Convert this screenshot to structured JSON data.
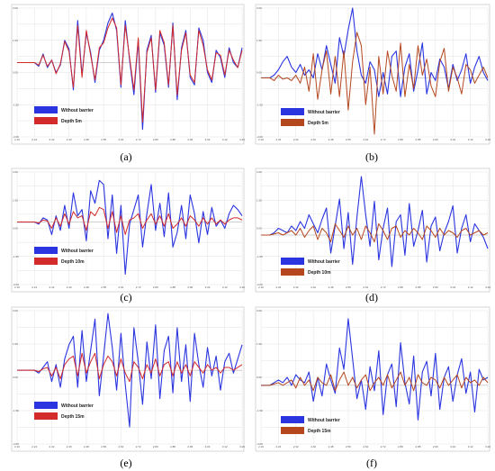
{
  "colors": {
    "without_barrier": "#2a35e0",
    "barrier_a": "#d32a2a",
    "barrier_b": "#b5471f",
    "grid": "#e2e2e2",
    "frame": "#bdbdbd",
    "zero_line": "#888888"
  },
  "chart_data": [
    {
      "type": "line",
      "panel_label": "(a)",
      "series": [
        {
          "name": "Without barrier",
          "color_key": "without_barrier",
          "values": [
            0,
            0,
            0,
            0,
            0,
            -0.15,
            0.35,
            -0.2,
            0.1,
            -0.4,
            -0.1,
            0.9,
            0.55,
            -1.1,
            1.7,
            -0.5,
            1.2,
            0.4,
            -0.8,
            0.5,
            0.9,
            1.6,
            2.0,
            1.3,
            -1.0,
            1.7,
            0.1,
            -1.3,
            0.9,
            -2.7,
            0.5,
            1.1,
            -1.2,
            1.2,
            0.7,
            -1.0,
            1.6,
            -1.5,
            0.6,
            1.3,
            -0.6,
            -0.9,
            1.4,
            0.9,
            -0.4,
            -0.8,
            0.5,
            0.2,
            -0.6,
            0.6,
            0.0,
            -0.2,
            0.6
          ]
        },
        {
          "name": "Depth 5m",
          "color_key": "barrier_a",
          "values": [
            0,
            0,
            0,
            0,
            0,
            -0.1,
            0.3,
            -0.15,
            0.1,
            -0.45,
            -0.05,
            0.85,
            0.45,
            -1.0,
            1.5,
            -0.6,
            1.3,
            0.3,
            -0.7,
            0.6,
            0.8,
            1.4,
            1.8,
            1.4,
            -0.9,
            1.5,
            0.2,
            -1.1,
            1.0,
            -2.4,
            0.4,
            1.0,
            -1.1,
            1.3,
            0.8,
            -0.9,
            1.5,
            -1.3,
            0.5,
            1.2,
            -0.5,
            -0.8,
            1.3,
            0.7,
            -0.3,
            -0.7,
            0.4,
            0.3,
            -0.5,
            0.5,
            0.1,
            -0.2,
            0.5
          ]
        }
      ],
      "x_ticks": [
        "2.16",
        "2.24",
        "2.32",
        "2.40",
        "2.48",
        "2.56",
        "2.64",
        "2.72",
        "2.80",
        "2.88",
        "2.96",
        "3.04",
        "3.12",
        "3.20"
      ],
      "y_ticks": [
        "3.00",
        "1.50",
        "0.00",
        "-1.50",
        "-3.00"
      ],
      "ylim": [
        -3,
        2.2
      ],
      "legend_labels": [
        "Without barrier",
        "Depth 5m"
      ]
    },
    {
      "type": "line",
      "panel_label": "(b)",
      "series": [
        {
          "name": "Without barrier",
          "color_key": "without_barrier",
          "values": [
            0,
            0,
            0,
            0.1,
            0.3,
            0.6,
            0.8,
            0.4,
            0.2,
            0.5,
            0.1,
            0.3,
            0.0,
            0.9,
            0.3,
            1.2,
            0.5,
            -0.2,
            1.5,
            0.8,
            1.8,
            2.6,
            1.0,
            0.1,
            -0.2,
            0.6,
            0.3,
            -0.7,
            0.2,
            -0.6,
            0.8,
            1.0,
            -0.7,
            0.4,
            0.9,
            -0.5,
            0.3,
            1.3,
            -0.6,
            0.2,
            -0.1,
            0.7,
            0.4,
            -0.4,
            0.5,
            -0.1,
            0.3,
            0.9,
            -0.2,
            0.4,
            0.8,
            0.2,
            -0.1
          ]
        },
        {
          "name": "Depth 5m",
          "color_key": "barrier_b",
          "values": [
            0,
            0,
            0,
            -0.1,
            0.1,
            -0.05,
            0.0,
            -0.1,
            0.1,
            -0.2,
            0.4,
            -0.5,
            0.9,
            -0.8,
            0.3,
            1.0,
            -0.6,
            0.8,
            -0.7,
            1.0,
            -1.2,
            0.6,
            1.7,
            1.2,
            -1.0,
            0.4,
            -2.1,
            0.8,
            -0.6,
            1.0,
            0.1,
            -0.5,
            1.3,
            -0.7,
            0.5,
            -0.4,
            1.2,
            0.1,
            0.7,
            -0.3,
            -0.7,
            0.6,
            1.1,
            -0.5,
            0.4,
            0.0,
            -0.6,
            0.5,
            0.3,
            -0.2,
            0.1,
            0.4,
            0.0
          ]
        }
      ],
      "x_ticks": [
        "2.16",
        "2.24",
        "2.32",
        "2.40",
        "2.48",
        "2.56",
        "2.64",
        "2.72",
        "2.80",
        "2.88",
        "2.96",
        "3.04",
        "3.12",
        "3.20"
      ],
      "y_ticks": [
        "3.00",
        "1.50",
        "0.00",
        "-1.50",
        "-3.00"
      ],
      "ylim": [
        -2.2,
        2.6
      ],
      "legend_labels": [
        "Without barrier",
        "Depth 5m"
      ]
    },
    {
      "type": "line",
      "panel_label": "(c)",
      "series": [
        {
          "name": "Without barrier",
          "color_key": "without_barrier",
          "values": [
            0,
            0,
            0,
            0,
            0,
            -0.1,
            0.2,
            0.1,
            -0.6,
            0.3,
            -0.4,
            0.8,
            -0.3,
            1.4,
            0.3,
            0.6,
            -0.9,
            1.5,
            0.9,
            2.0,
            1.8,
            -0.8,
            1.3,
            -1.5,
            0.8,
            -2.5,
            -0.1,
            0.6,
            1.3,
            -1.2,
            0.4,
            1.8,
            -0.4,
            0.9,
            -0.7,
            1.4,
            -1.2,
            -0.5,
            0.8,
            -0.8,
            1.3,
            0.4,
            -1.0,
            0.5,
            -0.6,
            0.7,
            -0.2,
            0.1,
            -0.3,
            0.4,
            0.8,
            0.6,
            0.3
          ]
        },
        {
          "name": "Depth 10m",
          "color_key": "barrier_a",
          "values": [
            0,
            0,
            0,
            0,
            0,
            -0.05,
            0.1,
            0.05,
            -0.3,
            0.2,
            -0.2,
            0.4,
            -0.1,
            0.5,
            0.2,
            0.3,
            -0.4,
            0.5,
            0.3,
            0.7,
            0.6,
            -0.3,
            0.5,
            -0.5,
            0.3,
            -0.6,
            0.1,
            0.2,
            0.4,
            -0.3,
            0.1,
            0.4,
            -0.1,
            0.3,
            -0.2,
            0.4,
            -0.3,
            -0.1,
            0.2,
            -0.2,
            0.3,
            0.1,
            -0.2,
            0.2,
            -0.1,
            0.2,
            -0.1,
            0.1,
            -0.1,
            0.1,
            0.2,
            0.2,
            0.1
          ]
        }
      ],
      "x_ticks": [
        "2.16",
        "2.24",
        "2.32",
        "2.40",
        "2.48",
        "2.56",
        "2.64",
        "2.72",
        "2.80",
        "2.88",
        "2.96",
        "3.04",
        "3.12",
        "3.20"
      ],
      "y_ticks": [
        "3.00",
        "1.50",
        "0.00",
        "-1.50",
        "-3.00"
      ],
      "ylim": [
        -3,
        2.4
      ],
      "legend_labels": [
        "Without barrier",
        "Depth 10m"
      ]
    },
    {
      "type": "line",
      "panel_label": "(d)",
      "series": [
        {
          "name": "Without barrier",
          "color_key": "without_barrier",
          "values": [
            0,
            0,
            0,
            0.1,
            0.3,
            0.2,
            0.1,
            0.4,
            0.2,
            0.6,
            0.3,
            0.9,
            0.5,
            0.1,
            0.7,
            1.2,
            -0.8,
            0.4,
            1.6,
            -0.6,
            1.0,
            -1.3,
            0.8,
            2.6,
            0.9,
            -0.5,
            1.5,
            -1.1,
            0.3,
            1.2,
            -1.4,
            0.6,
            0.9,
            -0.9,
            1.4,
            -0.5,
            0.2,
            1.1,
            -1.2,
            0.4,
            0.8,
            -0.7,
            0.1,
            0.6,
            1.3,
            -0.8,
            0.3,
            0.9,
            -0.3,
            0.5,
            0.2,
            -0.1,
            -0.6
          ]
        },
        {
          "name": "Depth 10m",
          "color_key": "barrier_b",
          "values": [
            0,
            0,
            0,
            0.05,
            0.1,
            0.0,
            0.1,
            0.2,
            0.0,
            0.3,
            -0.1,
            0.2,
            0.4,
            -0.2,
            0.3,
            0.1,
            -0.3,
            0.5,
            0.2,
            -0.1,
            0.4,
            0.0,
            0.3,
            -0.2,
            0.4,
            0.1,
            -0.3,
            0.5,
            0.2,
            -0.2,
            0.3,
            0.4,
            -0.1,
            0.2,
            0.0,
            0.3,
            0.1,
            -0.2,
            0.4,
            0.2,
            -0.1,
            0.3,
            0.0,
            0.2,
            0.1,
            -0.1,
            0.2,
            0.3,
            0.0,
            0.1,
            0.2,
            0.0,
            0.1
          ]
        }
      ],
      "x_ticks": [
        "2.16",
        "2.24",
        "2.32",
        "2.40",
        "2.48",
        "2.56",
        "2.64",
        "2.72",
        "2.80",
        "2.88",
        "2.96",
        "3.04",
        "3.12",
        "3.20"
      ],
      "y_ticks": [
        "3.00",
        "1.50",
        "0.00",
        "-1.50",
        "-3.00"
      ],
      "ylim": [
        -2.2,
        2.8
      ],
      "legend_labels": [
        "Without barrier",
        "Depth 10m"
      ]
    },
    {
      "type": "line",
      "panel_label": "(e)",
      "series": [
        {
          "name": "Without barrier",
          "color_key": "without_barrier",
          "values": [
            0,
            0,
            0,
            0,
            0,
            -0.1,
            0.1,
            0.3,
            -0.4,
            0.2,
            -0.6,
            0.4,
            0.9,
            1.2,
            -0.6,
            1.4,
            -0.4,
            0.7,
            1.8,
            -0.9,
            0.5,
            2.0,
            0.8,
            -0.7,
            1.3,
            -0.5,
            -2.0,
            1.5,
            0.3,
            -1.2,
            1.0,
            -0.3,
            1.6,
            -1.0,
            0.7,
            1.2,
            -0.8,
            1.5,
            -0.4,
            0.9,
            -1.1,
            1.3,
            0.2,
            -0.6,
            0.8,
            -0.2,
            0.5,
            -0.7,
            0.3,
            0.6,
            -0.1,
            0.4,
            0.9
          ]
        },
        {
          "name": "Depth 15m",
          "color_key": "barrier_a",
          "values": [
            0,
            0,
            0,
            0,
            0,
            -0.05,
            0.05,
            0.1,
            -0.2,
            0.1,
            -0.3,
            0.2,
            0.4,
            0.5,
            -0.2,
            0.6,
            -0.1,
            0.3,
            0.6,
            -0.3,
            0.2,
            0.5,
            0.3,
            -0.2,
            0.4,
            -0.1,
            -0.4,
            0.3,
            0.1,
            -0.3,
            0.2,
            -0.1,
            0.4,
            -0.2,
            0.2,
            0.3,
            -0.2,
            0.3,
            -0.1,
            0.2,
            -0.2,
            0.3,
            0.1,
            -0.1,
            0.2,
            0.0,
            0.1,
            -0.1,
            0.1,
            0.1,
            0.0,
            0.1,
            0.2
          ]
        }
      ],
      "x_ticks": [
        "2.16",
        "2.24",
        "2.32",
        "2.40",
        "2.48",
        "2.56",
        "2.64",
        "2.72",
        "2.80",
        "2.88",
        "2.96",
        "3.04",
        "3.12",
        "3.20"
      ],
      "y_ticks": [
        "3.00",
        "1.50",
        "0.00",
        "-1.50",
        "-3.00"
      ],
      "ylim": [
        -2.6,
        2.1
      ],
      "legend_labels": [
        "Without barrier",
        "Depth 15m"
      ]
    },
    {
      "type": "line",
      "panel_label": "(f)",
      "series": [
        {
          "name": "Without barrier",
          "color_key": "without_barrier",
          "values": [
            0,
            0,
            0,
            0.1,
            0.2,
            0.1,
            0.3,
            0.0,
            0.4,
            0.2,
            0.1,
            0.5,
            -0.6,
            0.3,
            -0.4,
            0.8,
            0.2,
            -0.3,
            1.4,
            0.6,
            2.5,
            1.0,
            -0.5,
            0.2,
            -0.9,
            0.7,
            -0.2,
            1.3,
            -1.1,
            0.4,
            0.8,
            -0.8,
            1.6,
            0.1,
            -0.7,
            1.1,
            -1.3,
            0.5,
            0.9,
            -0.4,
            1.2,
            -0.9,
            0.3,
            0.7,
            -0.6,
            0.4,
            1.0,
            -0.3,
            0.5,
            -1.0,
            0.6,
            0.2,
            0.3
          ]
        },
        {
          "name": "Depth 15m",
          "color_key": "barrier_b",
          "values": [
            0,
            0,
            0,
            0.05,
            0.1,
            0.0,
            0.1,
            0.2,
            -0.1,
            0.3,
            0.0,
            0.2,
            -0.2,
            0.3,
            0.1,
            0.0,
            0.4,
            -0.2,
            0.2,
            0.5,
            0.0,
            0.3,
            -0.1,
            0.2,
            0.4,
            -0.2,
            0.1,
            0.3,
            0.0,
            0.4,
            -0.1,
            0.2,
            0.5,
            0.0,
            0.3,
            -0.2,
            0.4,
            0.1,
            0.0,
            0.3,
            0.2,
            -0.1,
            0.3,
            0.0,
            0.2,
            0.4,
            -0.1,
            0.3,
            0.1,
            0.2,
            0.0,
            0.3,
            0.1
          ]
        }
      ],
      "x_ticks": [
        "2.16",
        "2.24",
        "2.32",
        "2.40",
        "2.48",
        "2.56",
        "2.64",
        "2.72",
        "2.80",
        "2.88",
        "2.96",
        "3.04",
        "3.12",
        "3.20"
      ],
      "y_ticks": [
        "3.00",
        "1.50",
        "0.00",
        "-1.50",
        "-3.00"
      ],
      "ylim": [
        -2.2,
        2.8
      ],
      "legend_labels": [
        "Without barrier",
        "Depth 15m"
      ]
    }
  ]
}
